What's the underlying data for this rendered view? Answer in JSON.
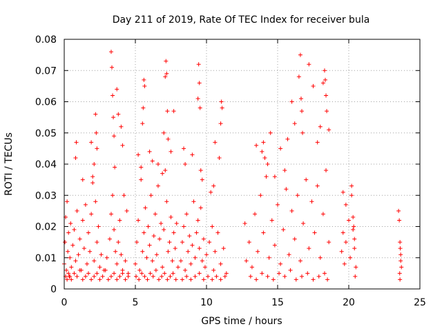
{
  "chart_data": {
    "type": "scatter",
    "title": "Day 211 of 2019, Rate Of TEC Index for receiver bula",
    "xlabel": "GPS time / hours",
    "ylabel": "ROTI / TECUs",
    "xlim": [
      0,
      25
    ],
    "ylim": [
      0,
      0.08
    ],
    "x_ticks": [
      "0",
      "5",
      "10",
      "15",
      "20",
      "25"
    ],
    "y_ticks": [
      "0",
      "0.01",
      "0.02",
      "0.03",
      "0.04",
      "0.05",
      "0.06",
      "0.07",
      "0.08"
    ],
    "grid": true,
    "marker": "+",
    "color": "#ff0000",
    "series": [
      {
        "x": [
          0.0,
          0.05,
          0.1,
          0.15,
          0.2,
          0.25,
          0.3,
          0.35,
          0.4,
          0.45,
          0.5,
          0.6,
          0.7,
          0.8,
          0.9,
          1.0,
          1.1,
          1.2,
          1.3,
          1.4,
          1.5,
          1.6,
          1.7,
          1.8,
          1.9,
          2.0,
          2.1,
          2.2,
          2.3,
          2.4,
          2.5,
          2.6,
          2.8,
          3.0,
          3.2,
          3.3,
          3.4,
          3.5,
          3.6,
          3.7,
          3.8,
          3.9,
          4.0,
          4.1,
          4.3,
          4.5,
          0.1,
          0.2,
          0.3,
          0.4,
          0.5,
          0.7,
          0.9,
          1.1,
          1.3,
          1.5,
          1.7,
          1.9,
          2.1,
          2.3,
          2.5,
          2.7,
          2.9,
          3.1,
          3.3,
          3.5,
          3.7,
          3.9,
          4.1,
          4.3,
          4.5,
          0.8,
          0.85,
          1.3,
          1.9,
          2.0,
          2.1,
          2.2,
          2.25,
          2.3,
          3.3,
          3.35,
          3.4,
          3.45,
          3.5,
          3.55,
          3.7,
          3.8,
          4.0,
          4.1,
          4.2,
          4.4,
          5.0,
          5.1,
          5.2,
          5.3,
          5.4,
          5.5,
          5.6,
          5.7,
          5.8,
          5.9,
          6.0,
          6.1,
          6.2,
          6.3,
          6.4,
          6.5,
          6.6,
          6.7,
          6.8,
          6.9,
          7.0,
          7.1,
          7.2,
          7.3,
          7.4,
          7.5,
          7.6,
          7.7,
          7.8,
          7.9,
          8.0,
          5.05,
          5.25,
          5.45,
          5.65,
          5.85,
          6.05,
          6.25,
          6.45,
          6.65,
          6.85,
          7.05,
          7.25,
          7.45,
          7.65,
          7.85,
          5.2,
          5.4,
          5.5,
          5.55,
          5.6,
          5.65,
          6.0,
          6.2,
          6.6,
          6.9,
          7.0,
          7.1,
          7.15,
          7.2,
          7.25,
          7.3,
          7.5,
          7.7,
          8.2,
          8.3,
          8.4,
          8.5,
          8.6,
          8.7,
          8.8,
          8.9,
          9.0,
          9.1,
          9.2,
          9.3,
          9.4,
          9.5,
          9.6,
          9.7,
          9.8,
          9.9,
          10.0,
          10.2,
          10.4,
          10.5,
          10.6,
          10.8,
          11.0,
          11.2,
          11.4,
          8.3,
          8.6,
          8.9,
          9.2,
          9.5,
          9.8,
          10.1,
          10.4,
          10.7,
          11.0,
          11.3,
          8.4,
          8.5,
          9.0,
          9.4,
          9.45,
          9.5,
          9.55,
          9.6,
          9.7,
          10.3,
          10.5,
          10.6,
          10.9,
          11.0,
          11.05,
          11.1,
          12.7,
          12.8,
          13.0,
          13.2,
          13.4,
          13.6,
          13.8,
          14.0,
          14.2,
          14.4,
          14.6,
          14.8,
          15.0,
          15.2,
          15.4,
          15.6,
          15.8,
          16.0,
          16.2,
          16.4,
          16.6,
          16.8,
          17.0,
          17.2,
          17.4,
          17.6,
          17.8,
          18.0,
          18.2,
          18.4,
          18.6,
          13.1,
          13.5,
          13.9,
          14.3,
          14.7,
          15.1,
          15.5,
          15.9,
          16.3,
          16.7,
          17.1,
          17.5,
          17.9,
          18.3,
          18.5,
          13.5,
          13.9,
          14.0,
          14.1,
          14.3,
          14.5,
          14.8,
          15.2,
          15.5,
          15.7,
          16.0,
          16.2,
          16.5,
          16.6,
          16.65,
          16.7,
          16.75,
          17.2,
          17.5,
          17.8,
          18.0,
          18.2,
          18.3,
          18.35,
          18.4,
          18.45,
          18.6,
          19.5,
          19.6,
          19.7,
          19.8,
          20.0,
          20.1,
          20.2,
          20.3,
          20.4,
          20.5,
          19.6,
          19.8,
          20.2,
          20.3,
          20.35,
          20.4,
          20.45,
          23.5,
          23.55,
          23.6,
          23.65,
          23.7,
          23.6,
          23.65,
          23.62,
          23.58
        ],
        "y": [
          0.008,
          0.015,
          0.023,
          0.006,
          0.028,
          0.012,
          0.018,
          0.004,
          0.01,
          0.021,
          0.007,
          0.014,
          0.019,
          0.009,
          0.025,
          0.011,
          0.016,
          0.006,
          0.022,
          0.013,
          0.027,
          0.008,
          0.018,
          0.012,
          0.024,
          0.034,
          0.009,
          0.028,
          0.015,
          0.02,
          0.007,
          0.011,
          0.006,
          0.01,
          0.016,
          0.024,
          0.03,
          0.019,
          0.012,
          0.008,
          0.015,
          0.022,
          0.011,
          0.006,
          0.009,
          0.005,
          0.004,
          0.003,
          0.005,
          0.004,
          0.003,
          0.005,
          0.004,
          0.006,
          0.003,
          0.004,
          0.005,
          0.003,
          0.004,
          0.005,
          0.003,
          0.004,
          0.006,
          0.003,
          0.004,
          0.005,
          0.003,
          0.004,
          0.005,
          0.003,
          0.004,
          0.042,
          0.047,
          0.035,
          0.047,
          0.036,
          0.04,
          0.056,
          0.05,
          0.045,
          0.076,
          0.071,
          0.062,
          0.055,
          0.049,
          0.039,
          0.064,
          0.056,
          0.052,
          0.046,
          0.03,
          0.025,
          0.008,
          0.015,
          0.022,
          0.006,
          0.035,
          0.012,
          0.018,
          0.026,
          0.01,
          0.02,
          0.014,
          0.03,
          0.009,
          0.017,
          0.024,
          0.011,
          0.033,
          0.016,
          0.021,
          0.007,
          0.019,
          0.038,
          0.028,
          0.012,
          0.015,
          0.023,
          0.009,
          0.018,
          0.013,
          0.021,
          0.007,
          0.004,
          0.003,
          0.005,
          0.004,
          0.003,
          0.005,
          0.004,
          0.006,
          0.003,
          0.004,
          0.005,
          0.003,
          0.004,
          0.005,
          0.003,
          0.043,
          0.039,
          0.053,
          0.058,
          0.067,
          0.065,
          0.044,
          0.041,
          0.04,
          0.037,
          0.05,
          0.068,
          0.073,
          0.069,
          0.057,
          0.048,
          0.044,
          0.057,
          0.009,
          0.015,
          0.02,
          0.006,
          0.024,
          0.012,
          0.017,
          0.008,
          0.014,
          0.028,
          0.01,
          0.018,
          0.022,
          0.013,
          0.026,
          0.009,
          0.016,
          0.007,
          0.011,
          0.015,
          0.02,
          0.006,
          0.012,
          0.018,
          0.008,
          0.013,
          0.005,
          0.003,
          0.004,
          0.003,
          0.004,
          0.005,
          0.003,
          0.004,
          0.003,
          0.004,
          0.003,
          0.004,
          0.045,
          0.04,
          0.043,
          0.061,
          0.072,
          0.066,
          0.058,
          0.038,
          0.035,
          0.031,
          0.033,
          0.047,
          0.042,
          0.053,
          0.06,
          0.058,
          0.021,
          0.009,
          0.015,
          0.007,
          0.024,
          0.012,
          0.03,
          0.018,
          0.036,
          0.01,
          0.022,
          0.014,
          0.027,
          0.008,
          0.019,
          0.032,
          0.011,
          0.025,
          0.016,
          0.03,
          0.009,
          0.021,
          0.035,
          0.013,
          0.028,
          0.018,
          0.033,
          0.01,
          0.024,
          0.038,
          0.015,
          0.004,
          0.003,
          0.005,
          0.004,
          0.003,
          0.005,
          0.004,
          0.006,
          0.003,
          0.004,
          0.005,
          0.003,
          0.004,
          0.005,
          0.003,
          0.046,
          0.044,
          0.047,
          0.042,
          0.04,
          0.05,
          0.036,
          0.045,
          0.038,
          0.048,
          0.06,
          0.053,
          0.068,
          0.075,
          0.061,
          0.057,
          0.05,
          0.072,
          0.065,
          0.047,
          0.052,
          0.066,
          0.07,
          0.067,
          0.062,
          0.057,
          0.051,
          0.012,
          0.018,
          0.008,
          0.015,
          0.022,
          0.01,
          0.03,
          0.019,
          0.013,
          0.007,
          0.031,
          0.027,
          0.033,
          0.023,
          0.02,
          0.016,
          0.004,
          0.025,
          0.022,
          0.015,
          0.011,
          0.007,
          0.003,
          0.009,
          0.013,
          0.005
        ]
      }
    ]
  }
}
